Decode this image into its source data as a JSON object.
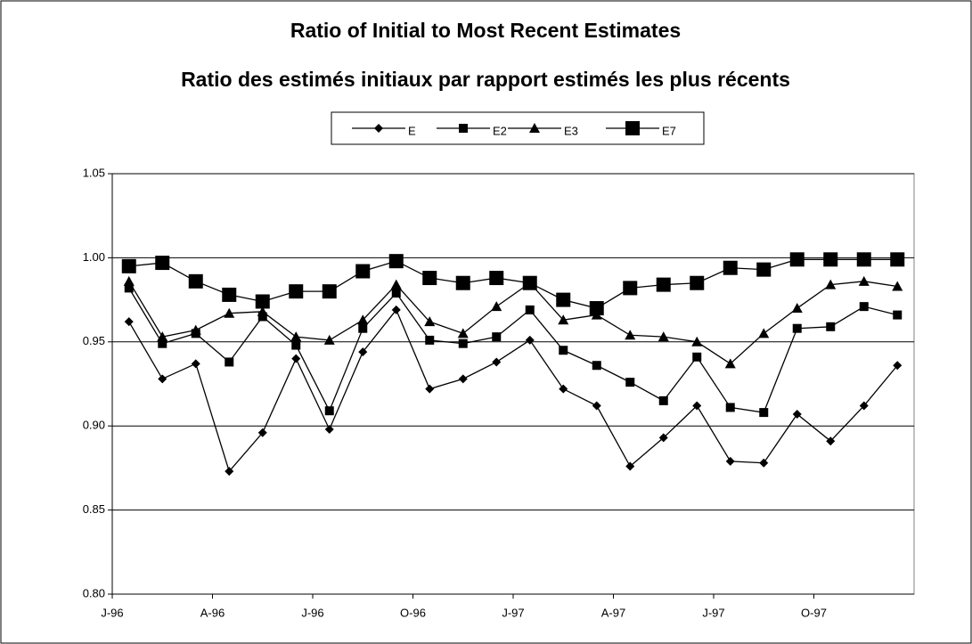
{
  "chart_data": {
    "type": "line",
    "title": "Ratio of Initial to Most Recent Estimates",
    "subtitle": "Ratio des estimés initiaux par rapport estimés les plus récents",
    "categories": [
      "J-96",
      null,
      null,
      "A-96",
      null,
      null,
      "J-96",
      null,
      null,
      "O-96",
      null,
      null,
      "J-97",
      null,
      null,
      "A-97",
      null,
      null,
      "J-97",
      null,
      null,
      "O-97",
      null,
      null
    ],
    "series": [
      {
        "name": "E",
        "color": "#000000",
        "marker": "diamond",
        "values": [
          0.962,
          0.928,
          0.937,
          0.873,
          0.896,
          0.94,
          0.898,
          0.944,
          0.969,
          0.922,
          0.928,
          0.938,
          0.951,
          0.922,
          0.912,
          0.876,
          0.893,
          0.912,
          0.879,
          0.878,
          0.907,
          0.891,
          0.912,
          0.936
        ]
      },
      {
        "name": "E2",
        "color": "#000000",
        "marker": "square",
        "values": [
          0.982,
          0.949,
          0.955,
          0.938,
          0.965,
          0.948,
          0.909,
          0.958,
          0.979,
          0.951,
          0.949,
          0.953,
          0.969,
          0.945,
          0.936,
          0.926,
          0.915,
          0.941,
          0.911,
          0.908,
          0.958,
          0.959,
          0.971,
          0.966
        ]
      },
      {
        "name": "E3",
        "color": "#000000",
        "marker": "triangle",
        "values": [
          0.986,
          0.953,
          0.957,
          0.967,
          0.968,
          0.953,
          0.951,
          0.963,
          0.984,
          0.962,
          0.955,
          0.971,
          0.985,
          0.963,
          0.966,
          0.954,
          0.953,
          0.95,
          0.937,
          0.955,
          0.97,
          0.984,
          0.986,
          0.983
        ]
      },
      {
        "name": "E7",
        "color": "#000000",
        "marker": "big-square",
        "values": [
          0.995,
          0.997,
          0.986,
          0.978,
          0.974,
          0.98,
          0.98,
          0.992,
          0.998,
          0.988,
          0.985,
          0.988,
          0.985,
          0.975,
          0.97,
          0.982,
          0.984,
          0.985,
          0.994,
          0.993,
          0.999,
          0.999,
          0.999,
          0.999
        ]
      }
    ],
    "ylim": [
      0.8,
      1.05
    ],
    "yticks": [
      {
        "value": 0.8,
        "label": "0.80"
      },
      0.85,
      {
        "value": 0.9,
        "label": "0.90"
      },
      0.95,
      {
        "value": 1.0,
        "label": "1.00"
      },
      1.05
    ],
    "grid": true,
    "legend": "top"
  }
}
